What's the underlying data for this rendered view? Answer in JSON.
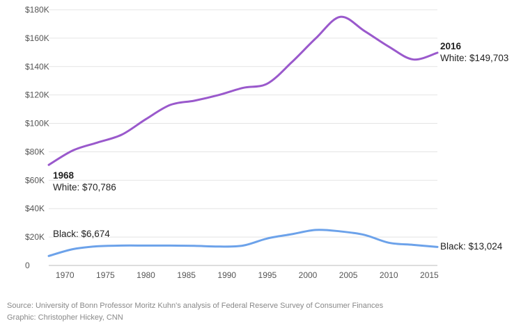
{
  "chart_data": {
    "type": "line",
    "x_ticks": [
      1970,
      1975,
      1980,
      1985,
      1990,
      1995,
      2000,
      2005,
      2010,
      2015
    ],
    "y_ticks": [
      0,
      20000,
      40000,
      60000,
      80000,
      100000,
      120000,
      140000,
      160000,
      180000
    ],
    "y_tick_labels": [
      "0",
      "$20K",
      "$40K",
      "$60K",
      "$80K",
      "$100K",
      "$120K",
      "$140K",
      "$160K",
      "$180K"
    ],
    "xlim": [
      1968,
      2016
    ],
    "ylim": [
      0,
      180000
    ],
    "grid": "horizontal",
    "series": [
      {
        "name": "White",
        "color": "#9a59cc",
        "x": [
          1968,
          1971,
          1974,
          1977,
          1980,
          1983,
          1986,
          1989,
          1992,
          1995,
          1998,
          2001,
          2004,
          2007,
          2010,
          2013,
          2016
        ],
        "values": [
          70786,
          81000,
          86500,
          92000,
          103000,
          113000,
          116000,
          120000,
          125000,
          128000,
          143000,
          160000,
          175000,
          165000,
          154000,
          145000,
          149703
        ]
      },
      {
        "name": "Black",
        "color": "#6ca2ea",
        "x": [
          1968,
          1971,
          1974,
          1977,
          1980,
          1983,
          1986,
          1989,
          1992,
          1995,
          1998,
          2001,
          2004,
          2007,
          2010,
          2013,
          2016
        ],
        "values": [
          6674,
          11500,
          13500,
          14000,
          14000,
          14000,
          13800,
          13300,
          14000,
          19000,
          22000,
          25000,
          24000,
          21500,
          16000,
          14500,
          13024
        ]
      }
    ],
    "annotations": {
      "start_year": "1968",
      "white_start": "White: $70,786",
      "black_start": "Black: $6,674",
      "end_year": "2016",
      "white_end": "White: $149,703",
      "black_end": "Black: $13,024"
    }
  },
  "footer": {
    "source": "Source: University of Bonn Professor Moritz Kuhn's analysis of Federal Reserve Survey of Consumer Finances",
    "credit": "Graphic: Christopher Hickey, CNN"
  }
}
